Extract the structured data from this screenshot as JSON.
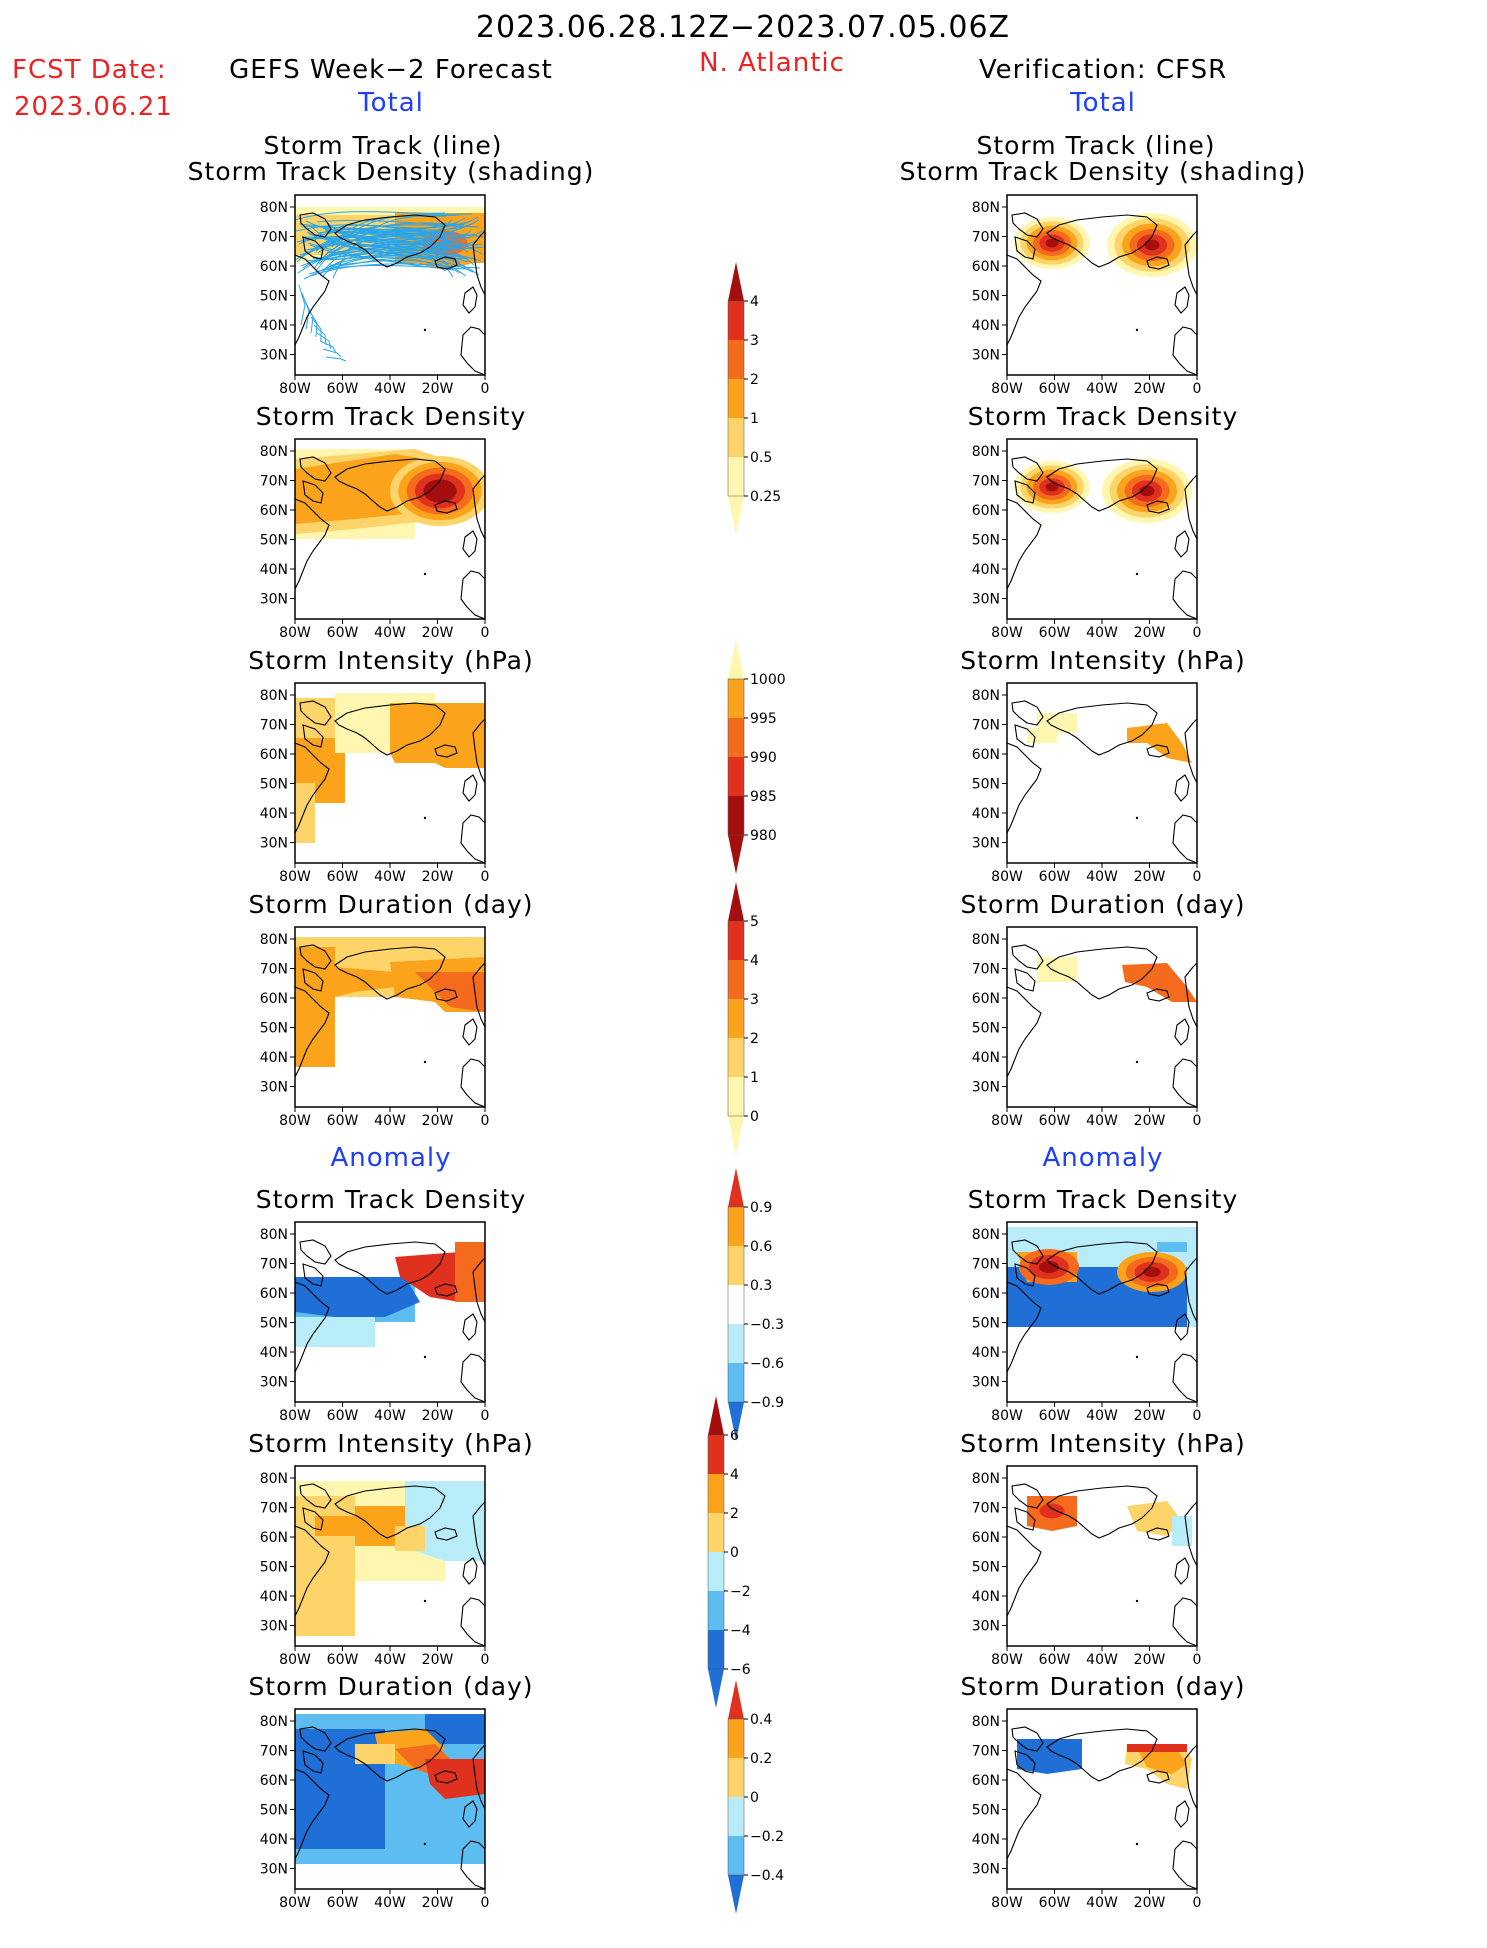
{
  "header": {
    "date_range": "2023.06.28.12Z−2023.07.05.06Z",
    "fcst_label": "FCST Date:",
    "fcst_date": "2023.06.21",
    "left_title": "GEFS Week−2 Forecast",
    "region": "N. Atlantic",
    "right_title": "Verification: CFSR",
    "total_left": "Total",
    "total_right": "Total",
    "anomaly_left": "Anomaly",
    "anomaly_right": "Anomaly"
  },
  "panel_titles": {
    "track_line": "Storm Track (line)",
    "track_shading": "Storm Track Density (shading)",
    "density": "Storm Track Density",
    "intensity": "Storm Intensity (hPa)",
    "duration": "Storm Duration (day)"
  },
  "axes": {
    "lat_labels": [
      "80N",
      "70N",
      "60N",
      "50N",
      "40N",
      "30N"
    ],
    "lon_labels": [
      "80W",
      "60W",
      "40W",
      "20W",
      "0"
    ]
  },
  "colorbars": {
    "density_total": [
      "4",
      "3",
      "2",
      "1",
      "0.5",
      "0.25"
    ],
    "intensity_total": [
      "1000",
      "995",
      "990",
      "985",
      "980"
    ],
    "duration_total": [
      "5",
      "4",
      "3",
      "2",
      "1",
      "0"
    ],
    "density_anom": [
      "0.9",
      "0.6",
      "0.3",
      "−0.3",
      "−0.6",
      "−0.9"
    ],
    "intensity_anom": [
      "6",
      "4",
      "2",
      "0",
      "−2",
      "−4",
      "−6"
    ],
    "duration_anom": [
      "0.4",
      "0.2",
      "0",
      "−0.2",
      "−0.4"
    ]
  },
  "colors": {
    "title_red": "#ee2222",
    "title_blue": "#1f3fff",
    "warm_1": "#fff7b0",
    "warm_2": "#fdd46a",
    "warm_3": "#fba31b",
    "warm_4": "#f46b1e",
    "warm_5": "#e0301e",
    "warm_6": "#a50e0e",
    "cool_1": "#b8ecf8",
    "cool_2": "#5dbdf0",
    "cool_3": "#1f6fd6",
    "track_line": "#29a5ea"
  }
}
